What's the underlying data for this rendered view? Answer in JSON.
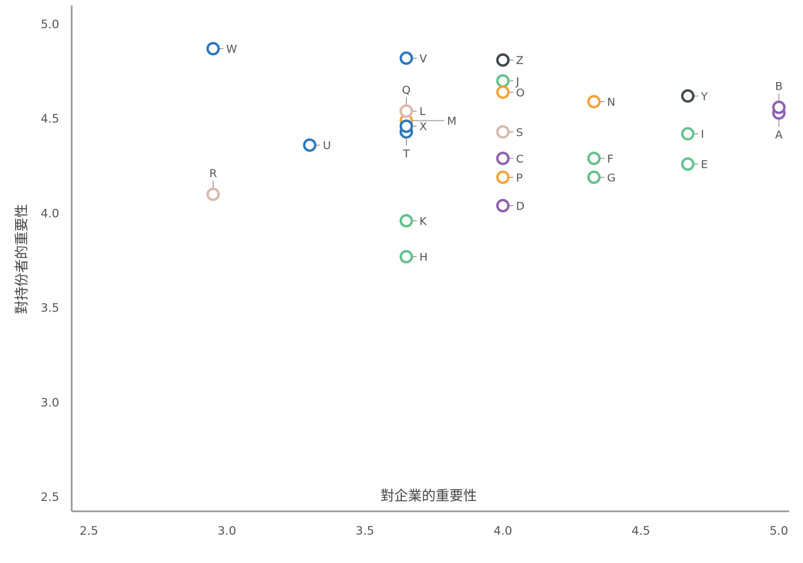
{
  "colors": {
    "blue": "#2b78bd",
    "green": "#63c18b",
    "orange": "#f5a33a",
    "purple": "#8d5fae",
    "pink": "#d8b9ad",
    "dark": "#3f4650"
  },
  "chart_data": {
    "type": "scatter",
    "title": "",
    "xlabel": "對企業的重要性",
    "ylabel": "對持份者的重要性",
    "xlim": [
      2.5,
      5.0
    ],
    "ylim": [
      2.5,
      5.0
    ],
    "x_ticks": [
      "2.5",
      "3.0",
      "3.5",
      "4.0",
      "4.5",
      "5.0"
    ],
    "y_ticks": [
      "2.5",
      "3.0",
      "3.5",
      "4.0",
      "4.5",
      "5.0"
    ],
    "grid": false,
    "legend": "none",
    "points": [
      {
        "label": "A",
        "x": 5.0,
        "y": 4.53,
        "color": "purple"
      },
      {
        "label": "B",
        "x": 5.0,
        "y": 4.56,
        "color": "purple"
      },
      {
        "label": "C",
        "x": 4.0,
        "y": 4.29,
        "color": "purple"
      },
      {
        "label": "D",
        "x": 4.0,
        "y": 4.04,
        "color": "purple"
      },
      {
        "label": "E",
        "x": 4.67,
        "y": 4.26,
        "color": "green"
      },
      {
        "label": "F",
        "x": 4.33,
        "y": 4.29,
        "color": "green"
      },
      {
        "label": "G",
        "x": 4.33,
        "y": 4.19,
        "color": "green"
      },
      {
        "label": "H",
        "x": 3.65,
        "y": 3.77,
        "color": "green"
      },
      {
        "label": "I",
        "x": 4.67,
        "y": 4.42,
        "color": "green"
      },
      {
        "label": "J",
        "x": 4.0,
        "y": 4.7,
        "color": "green"
      },
      {
        "label": "K",
        "x": 3.65,
        "y": 3.96,
        "color": "green"
      },
      {
        "label": "L",
        "x": 3.65,
        "y": 4.54,
        "color": "pink"
      },
      {
        "label": "M",
        "x": 3.65,
        "y": 4.49,
        "color": "orange"
      },
      {
        "label": "N",
        "x": 4.33,
        "y": 4.59,
        "color": "orange"
      },
      {
        "label": "O",
        "x": 4.0,
        "y": 4.64,
        "color": "orange"
      },
      {
        "label": "P",
        "x": 4.0,
        "y": 4.19,
        "color": "orange"
      },
      {
        "label": "Q",
        "x": 3.65,
        "y": 4.54,
        "color": "pink"
      },
      {
        "label": "R",
        "x": 2.95,
        "y": 4.1,
        "color": "pink"
      },
      {
        "label": "S",
        "x": 4.0,
        "y": 4.43,
        "color": "pink"
      },
      {
        "label": "T",
        "x": 3.65,
        "y": 4.43,
        "color": "blue"
      },
      {
        "label": "U",
        "x": 3.3,
        "y": 4.36,
        "color": "blue"
      },
      {
        "label": "V",
        "x": 3.65,
        "y": 4.82,
        "color": "blue"
      },
      {
        "label": "W",
        "x": 2.95,
        "y": 4.87,
        "color": "blue"
      },
      {
        "label": "X",
        "x": 3.65,
        "y": 4.46,
        "color": "blue"
      },
      {
        "label": "Y",
        "x": 4.67,
        "y": 4.62,
        "color": "dark"
      },
      {
        "label": "Z",
        "x": 4.0,
        "y": 4.81,
        "color": "dark"
      }
    ]
  }
}
